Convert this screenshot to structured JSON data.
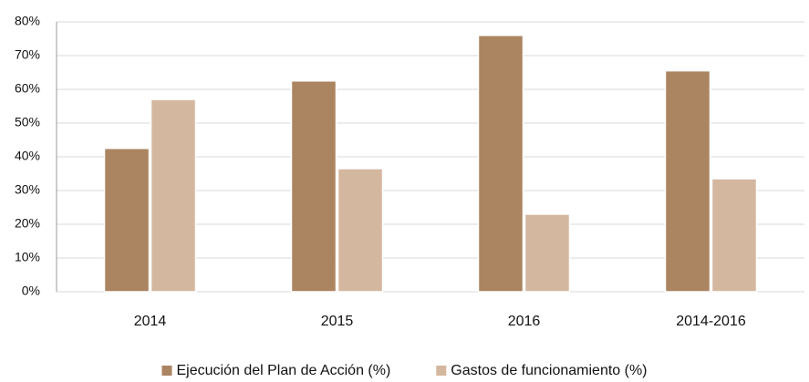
{
  "chart_data": {
    "type": "bar",
    "categories": [
      "2014",
      "2015",
      "2016",
      "2014-2016"
    ],
    "series": [
      {
        "name": "Ejecución del Plan de Acción (%)",
        "color": "#ab8461",
        "values": [
          42.5,
          62.5,
          76,
          65.5
        ]
      },
      {
        "name": "Gastos de funcionamiento (%)",
        "color": "#d4b79f",
        "values": [
          57,
          36.5,
          23,
          33.5
        ]
      }
    ],
    "ylim": [
      0,
      80
    ],
    "yticks": [
      {
        "value": 0,
        "label": "0%"
      },
      {
        "value": 10,
        "label": "10%"
      },
      {
        "value": 20,
        "label": "20%"
      },
      {
        "value": 30,
        "label": "30%"
      },
      {
        "value": 40,
        "label": "40%"
      },
      {
        "value": 50,
        "label": "50%"
      },
      {
        "value": 60,
        "label": "60%"
      },
      {
        "value": 70,
        "label": "70%"
      },
      {
        "value": 80,
        "label": "80%"
      }
    ],
    "grid": true,
    "legend": "bottom"
  }
}
